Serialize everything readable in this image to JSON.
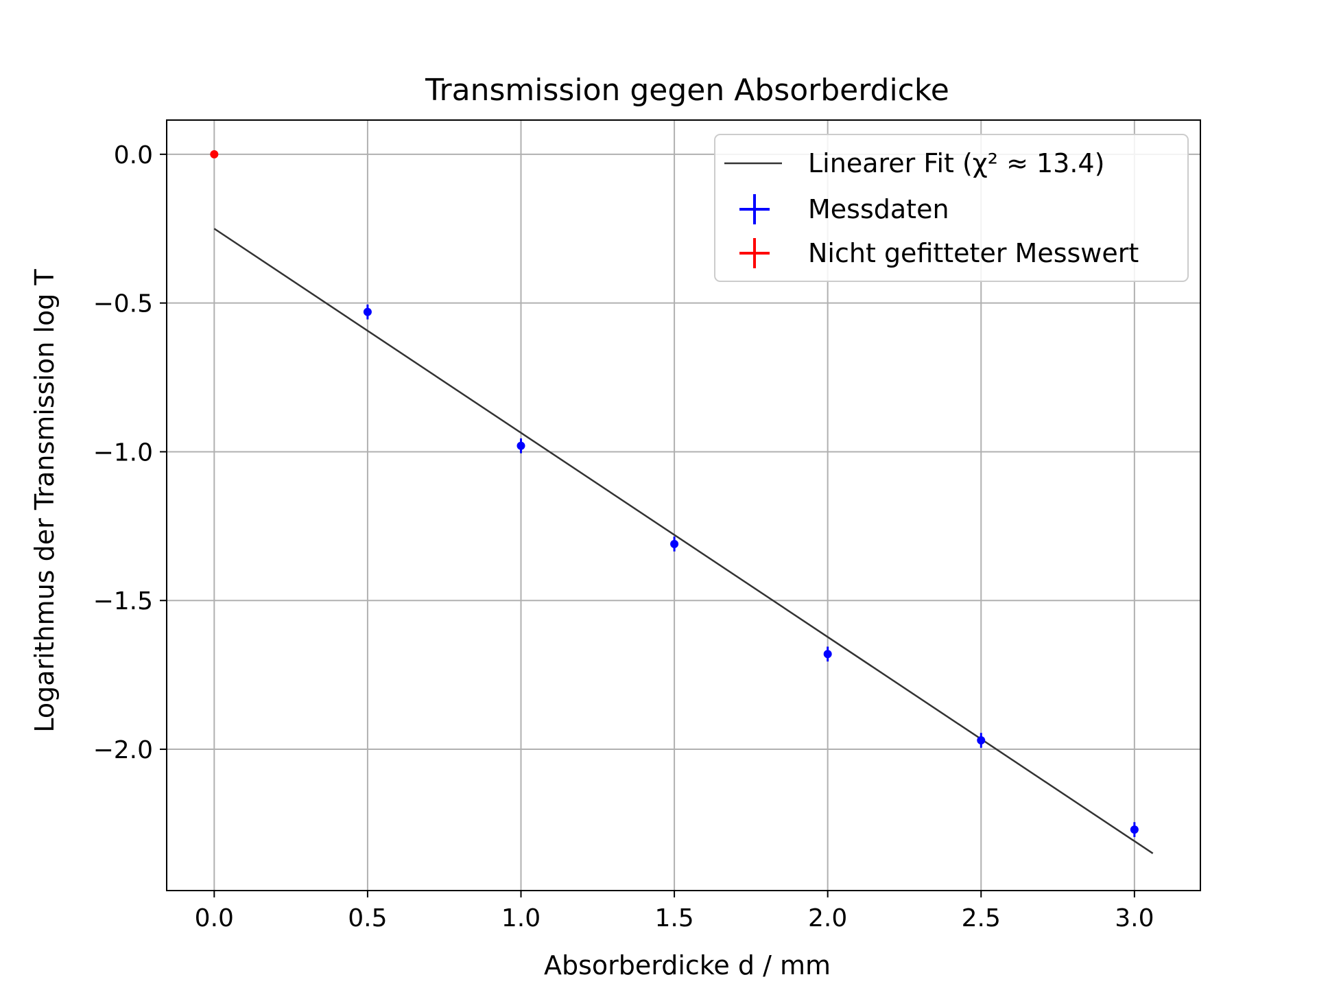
{
  "chart_data": {
    "type": "scatter",
    "title": "Transmission gegen Absorberdicke",
    "xlabel": "Absorberdicke d / mm",
    "ylabel": "Logarithmus der Transmission log T",
    "xlim": [
      -0.155,
      3.215
    ],
    "ylim": [
      -2.475,
      0.115
    ],
    "x_ticks": [
      0.0,
      0.5,
      1.0,
      1.5,
      2.0,
      2.5,
      3.0
    ],
    "x_tick_labels": [
      "0.0",
      "0.5",
      "1.0",
      "1.5",
      "2.0",
      "2.5",
      "3.0"
    ],
    "y_ticks": [
      0.0,
      -0.5,
      -1.0,
      -1.5,
      -2.0
    ],
    "y_tick_labels": [
      "0.0",
      "−0.5",
      "−1.0",
      "−1.5",
      "−2.0"
    ],
    "grid": true,
    "legend_position": "top-right",
    "series": [
      {
        "name": "Linearer Fit (χ² ≈ 13.4)",
        "kind": "line",
        "color": "#333333",
        "x": [
          0.0,
          3.06
        ],
        "y": [
          -0.25,
          -2.35
        ]
      },
      {
        "name": "Messdaten",
        "kind": "errorbar",
        "color": "#0000ff",
        "x": [
          0.5,
          1.0,
          1.5,
          2.0,
          2.5,
          3.0
        ],
        "y": [
          -0.53,
          -0.98,
          -1.31,
          -1.68,
          -1.97,
          -2.27
        ],
        "yerr": [
          0.025,
          0.025,
          0.025,
          0.025,
          0.025,
          0.025
        ]
      },
      {
        "name": "Nicht gefitteter Messwert",
        "kind": "errorbar",
        "color": "#ff0000",
        "x": [
          0.0
        ],
        "y": [
          0.0
        ],
        "yerr": [
          0.0
        ]
      }
    ]
  }
}
